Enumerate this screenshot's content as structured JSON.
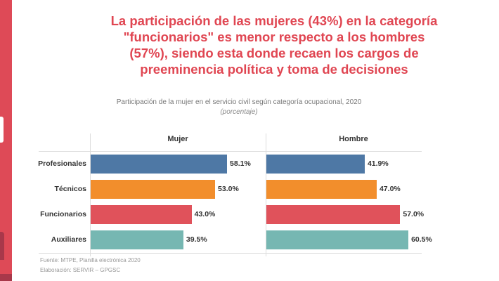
{
  "headline": [
    "La participación de las mujeres (43%) en la categoría",
    "\"funcionarios\" es menor respecto a los hombres",
    "(57%), siendo esta donde recaen los cargos de",
    "preeminencia política y toma de decisiones"
  ],
  "chart_data": {
    "type": "bar",
    "orientation": "horizontal",
    "title": "Participación de la mujer en el servicio civil según categoría ocupacional, 2020",
    "subtitle": "(porcentaje)",
    "categories": [
      "Profesionales",
      "Técnicos",
      "Funcionarios",
      "Auxiliares"
    ],
    "panels": [
      {
        "name": "Mujer",
        "values": [
          58.1,
          53.0,
          43.0,
          39.5
        ],
        "labels": [
          "58.1%",
          "53.0%",
          "43.0%",
          "39.5%"
        ]
      },
      {
        "name": "Hombre",
        "values": [
          41.9,
          47.0,
          57.0,
          60.5
        ],
        "labels": [
          "41.9%",
          "47.0%",
          "57.0%",
          "60.5%"
        ]
      }
    ],
    "colors": [
      "#4e78a5",
      "#f28e2c",
      "#e0525b",
      "#76b7b2"
    ],
    "unit": "%"
  },
  "source": "Fuente: MTPE, Planilla electrónica 2020",
  "credit": "Elaboración: SERVIR – GPGSC"
}
